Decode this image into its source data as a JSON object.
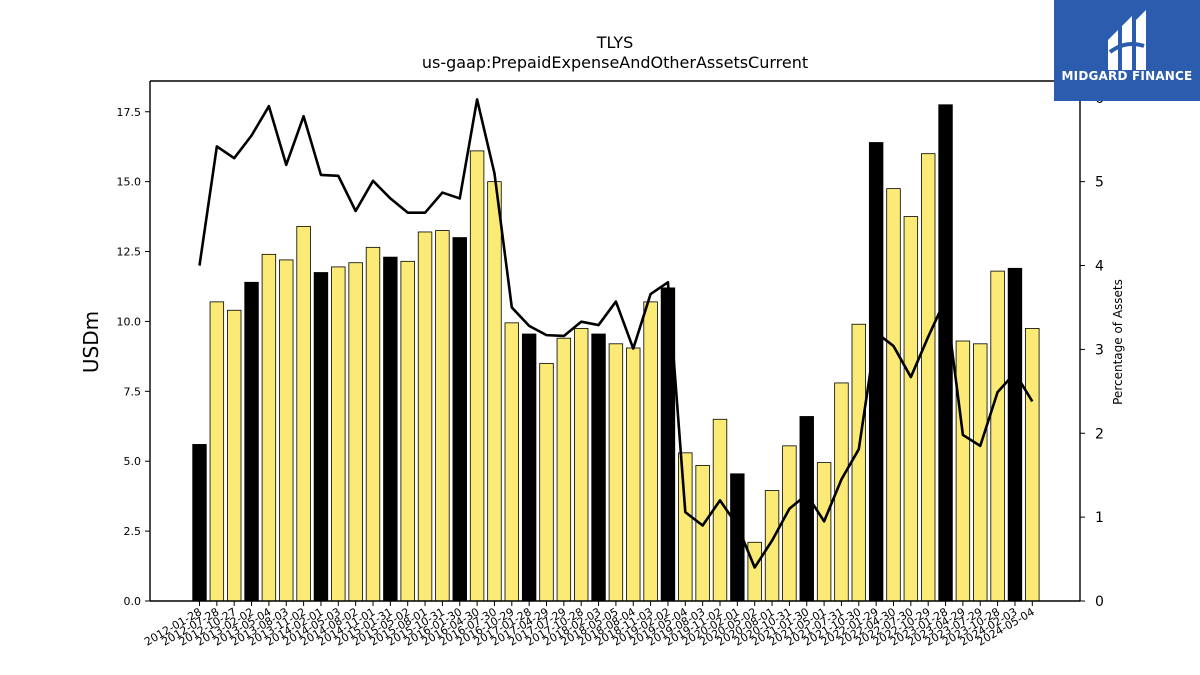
{
  "chart_data": {
    "type": "bar",
    "title": "TLYS",
    "subtitle": "us-gaap:PrepaidExpenseAndOtherAssetsCurrent",
    "ylabel": "USDm",
    "y2label": "Percentage of Assets",
    "ylim": [
      0,
      18.6
    ],
    "y2lim": [
      0,
      6.2
    ],
    "yticks": [
      "0.0",
      "2.5",
      "5.0",
      "7.5",
      "10.0",
      "12.5",
      "15.0",
      "17.5"
    ],
    "y2ticks": [
      "0",
      "1",
      "2",
      "3",
      "4",
      "5",
      "6"
    ],
    "categories": [
      "2012-01-28",
      "2012-07-28",
      "2012-10-27",
      "2013-02-02",
      "2013-05-04",
      "2013-08-03",
      "2013-11-02",
      "2014-02-01",
      "2014-05-03",
      "2014-08-02",
      "2014-11-01",
      "2015-01-31",
      "2015-05-02",
      "2015-08-01",
      "2015-10-31",
      "2016-01-30",
      "2016-04-30",
      "2016-07-30",
      "2016-10-29",
      "2017-01-28",
      "2017-04-29",
      "2017-07-29",
      "2017-10-28",
      "2018-02-03",
      "2018-05-05",
      "2018-08-04",
      "2018-11-03",
      "2019-02-02",
      "2019-05-04",
      "2019-08-03",
      "2019-11-02",
      "2020-02-01",
      "2020-05-02",
      "2020-08-01",
      "2020-10-31",
      "2021-01-30",
      "2021-05-01",
      "2021-07-31",
      "2021-10-30",
      "2022-01-29",
      "2022-04-30",
      "2022-07-30",
      "2022-10-29",
      "2023-01-28",
      "2023-04-29",
      "2023-07-29",
      "2023-10-28",
      "2024-02-03",
      "2024-05-04"
    ],
    "values": [
      5.6,
      10.7,
      10.4,
      11.4,
      12.4,
      12.2,
      13.4,
      11.75,
      11.95,
      12.1,
      12.65,
      12.3,
      12.15,
      13.2,
      13.25,
      13.0,
      16.1,
      15.0,
      9.95,
      9.55,
      8.5,
      9.4,
      9.75,
      9.55,
      9.2,
      9.05,
      10.7,
      11.2,
      5.3,
      4.85,
      6.5,
      4.55,
      2.1,
      3.95,
      5.55,
      6.6,
      4.95,
      7.8,
      9.9,
      16.4,
      14.75,
      13.75,
      16.0,
      17.75,
      9.3,
      9.2,
      11.8,
      11.9,
      9.75
    ],
    "highlight": [
      true,
      false,
      false,
      true,
      false,
      false,
      false,
      true,
      false,
      false,
      false,
      true,
      false,
      false,
      false,
      true,
      false,
      false,
      false,
      true,
      false,
      false,
      false,
      true,
      false,
      false,
      false,
      true,
      false,
      false,
      false,
      true,
      false,
      false,
      false,
      true,
      false,
      false,
      false,
      true,
      false,
      false,
      false,
      true,
      false,
      false,
      false,
      true,
      false
    ],
    "pct_of_assets": [
      4.0,
      5.42,
      5.28,
      5.55,
      5.9,
      5.2,
      5.78,
      5.08,
      5.07,
      4.65,
      5.01,
      4.8,
      4.63,
      4.63,
      4.87,
      4.8,
      5.98,
      5.1,
      3.5,
      3.28,
      3.17,
      3.16,
      3.33,
      3.29,
      3.57,
      3.01,
      3.66,
      3.8,
      1.06,
      0.9,
      1.2,
      0.9,
      0.4,
      0.72,
      1.1,
      1.27,
      0.95,
      1.45,
      1.81,
      3.2,
      3.04,
      2.67,
      3.15,
      3.6,
      1.98,
      1.85,
      2.49,
      2.72,
      2.38
    ],
    "colors": {
      "bar": "#fbea76",
      "highlight_bar": "#000000",
      "bar_edge": "#000000",
      "line": "#000000"
    }
  },
  "branding": {
    "logo_text": "MIDGARD FINANCE",
    "logo_color": "#2b5cae"
  }
}
